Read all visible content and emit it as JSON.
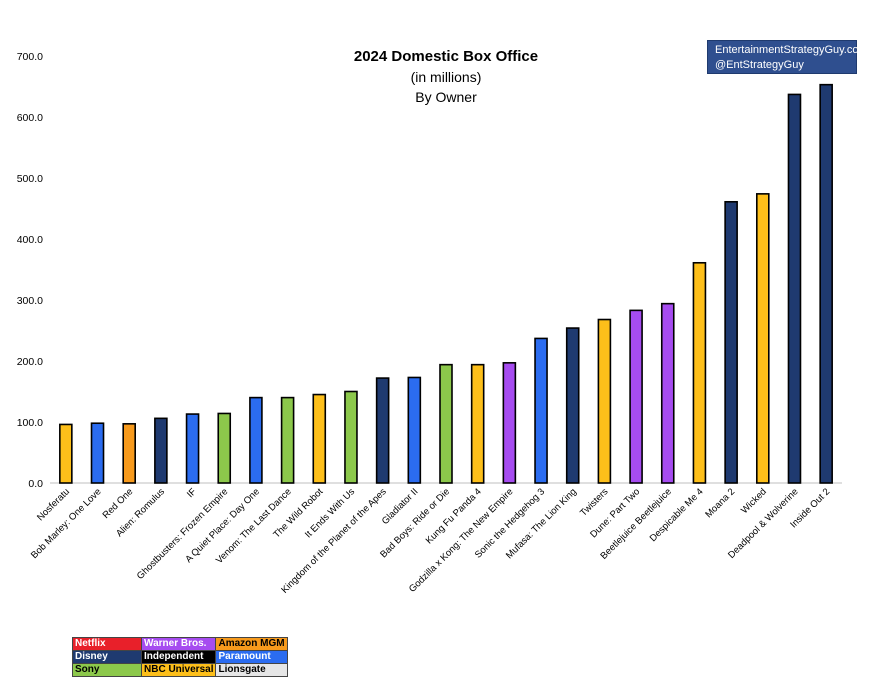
{
  "chart_data": {
    "type": "bar",
    "title": "2024 Domestic Box Office",
    "subtitle": "(in millions)",
    "subtitle2": "By Owner",
    "xlabel": "",
    "ylabel": "",
    "ylim": [
      0,
      700
    ],
    "yticks": [
      "0.0",
      "100.0",
      "200.0",
      "300.0",
      "400.0",
      "500.0",
      "600.0",
      "700.0"
    ],
    "grid": false,
    "legend_position": "bottom-left",
    "categories": [
      "Nosferatu",
      "Bob Marley: One Love",
      "Red One",
      "Alien: Romulus",
      "IF",
      "Ghostbusters: Frozen Empire",
      "A Quiet Place: Day One",
      "Venom: The Last Dance",
      "The Wild Robot",
      "It Ends With Us",
      "Kingdom of the Planet of the Apes",
      "Gladiator II",
      "Bad Boys: Ride or Die",
      "Kung Fu Panda 4",
      "Godzilla x Kong: The New Empire",
      "Sonic the Hedgehog 3",
      "Mufasa: The Lion King",
      "Twisters",
      "Dune: Part Two",
      "Beetlejuice Beetlejuice",
      "Despicable Me 4",
      "Moana 2",
      "Wicked",
      "Deadpool & Wolverine",
      "Inside Out 2"
    ],
    "values": [
      96,
      98,
      97,
      106,
      113,
      114,
      140,
      140,
      145,
      150,
      172,
      173,
      194,
      194,
      197,
      237,
      254,
      268,
      283,
      294,
      361,
      461,
      474,
      637,
      653
    ],
    "owners": [
      "NBC Universal",
      "Paramount",
      "Amazon MGM",
      "Disney",
      "Paramount",
      "Sony",
      "Paramount",
      "Sony",
      "NBC Universal",
      "Sony",
      "Disney",
      "Paramount",
      "Sony",
      "NBC Universal",
      "Warner Bros.",
      "Paramount",
      "Disney",
      "NBC Universal",
      "Warner Bros.",
      "Warner Bros.",
      "NBC Universal",
      "Disney",
      "NBC Universal",
      "Disney",
      "Disney"
    ]
  },
  "owner_colors": {
    "Netflix": "#e8202a",
    "Warner Bros.": "#a64cf0",
    "Amazon MGM": "#f79a1c",
    "Disney": "#1f3a70",
    "Independent": "#000000",
    "Paramount": "#2b6cf0",
    "Sony": "#8cc84b",
    "NBC Universal": "#fdbf1a",
    "Lionsgate": "#e6e6e6"
  },
  "legend": [
    [
      {
        "label": "Netflix",
        "bg": "#e8202a",
        "fg": "#ffffff"
      },
      {
        "label": "Warner Bros.",
        "bg": "#a64cf0",
        "fg": "#ffffff"
      },
      {
        "label": "Amazon MGM",
        "bg": "#f79a1c",
        "fg": "#000000"
      }
    ],
    [
      {
        "label": "Disney",
        "bg": "#1f3a70",
        "fg": "#ffffff"
      },
      {
        "label": "Independent",
        "bg": "#000000",
        "fg": "#ffffff"
      },
      {
        "label": "Paramount",
        "bg": "#2b6cf0",
        "fg": "#ffffff"
      }
    ],
    [
      {
        "label": "Sony",
        "bg": "#8cc84b",
        "fg": "#000000"
      },
      {
        "label": "NBC Universal",
        "bg": "#fdbf1a",
        "fg": "#000000"
      },
      {
        "label": "Lionsgate",
        "bg": "#e6e6e6",
        "fg": "#000000"
      }
    ]
  ],
  "credit": {
    "line1": "EntertainmentStrategyGuy.com",
    "line2": "@EntStrategyGuy"
  }
}
